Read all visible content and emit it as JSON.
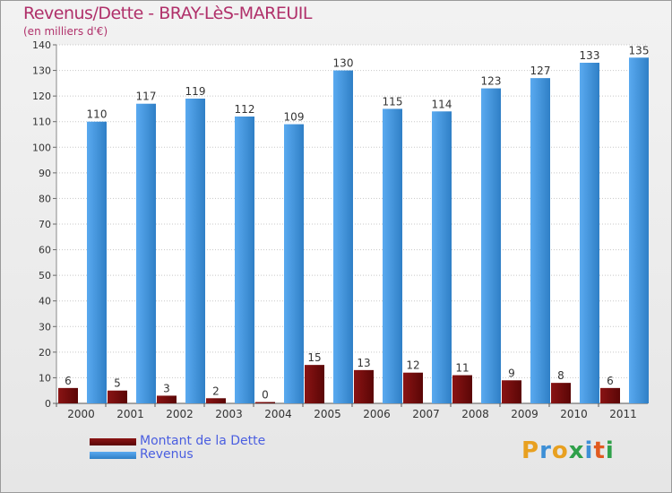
{
  "header": {
    "title": "Revenus/Dette - BRAY-LèS-MAREUIL",
    "subtitle": "(en milliers d'€)"
  },
  "legend": {
    "items": [
      {
        "label": "Montant de la Dette",
        "color": "#6b0a0a"
      },
      {
        "label": "Revenus",
        "color": "#3d8fd6"
      }
    ]
  },
  "logo": {
    "text": "Proxiti"
  },
  "chart_data": {
    "type": "bar",
    "title": "Revenus/Dette - BRAY-LèS-MAREUIL",
    "ylabel": "(en milliers d'€)",
    "categories": [
      "2000",
      "2001",
      "2002",
      "2003",
      "2004",
      "2005",
      "2006",
      "2007",
      "2008",
      "2009",
      "2010",
      "2011"
    ],
    "series": [
      {
        "name": "Montant de la Dette",
        "values": [
          6,
          5,
          3,
          2,
          0,
          15,
          13,
          12,
          11,
          9,
          8,
          6
        ]
      },
      {
        "name": "Revenus",
        "values": [
          110,
          117,
          119,
          112,
          109,
          130,
          115,
          114,
          123,
          127,
          133,
          135
        ]
      }
    ],
    "ylim": [
      0,
      140
    ],
    "yticks": [
      0,
      10,
      20,
      30,
      40,
      50,
      60,
      70,
      80,
      90,
      100,
      110,
      120,
      130,
      140
    ],
    "grid": true,
    "legend_position": "bottom-left"
  }
}
